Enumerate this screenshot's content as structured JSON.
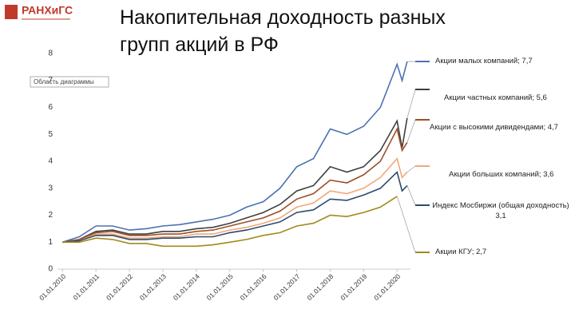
{
  "logo": "РАНХиГС",
  "chart_data": {
    "type": "line",
    "title_lines": [
      "Накопительная доходность разных",
      "групп акций в РФ"
    ],
    "chart_area_label": "Область диаграммы",
    "x": [
      2010,
      2010.5,
      2011,
      2011.5,
      2012,
      2012.5,
      2013,
      2013.5,
      2014,
      2014.5,
      2015,
      2015.5,
      2016,
      2016.5,
      2017,
      2017.5,
      2018,
      2018.5,
      2019,
      2019.5,
      2020,
      2020.15,
      2020.3
    ],
    "xlim": [
      2009.85,
      2020.4
    ],
    "xticks": [
      {
        "value": 2010,
        "label": "01.01.2010"
      },
      {
        "value": 2011,
        "label": "01.01.2011"
      },
      {
        "value": 2012,
        "label": "01.01.2012"
      },
      {
        "value": 2013,
        "label": "01.01.2013"
      },
      {
        "value": 2014,
        "label": "01.01.2014"
      },
      {
        "value": 2015,
        "label": "01.01.2015"
      },
      {
        "value": 2016,
        "label": "01.01.2016"
      },
      {
        "value": 2017,
        "label": "01.01.2017"
      },
      {
        "value": 2018,
        "label": "01.01.2018"
      },
      {
        "value": 2019,
        "label": "01.01.2019"
      },
      {
        "value": 2020,
        "label": "01.01.2020"
      }
    ],
    "ylim": [
      0,
      8
    ],
    "yticks": [
      0,
      1,
      2,
      3,
      4,
      5,
      6,
      7,
      8
    ],
    "grid": false,
    "series": [
      {
        "name": "Акции малых компаний; 7,7",
        "color": "#4a72b0",
        "values": [
          1.0,
          1.2,
          1.6,
          1.6,
          1.45,
          1.5,
          1.6,
          1.65,
          1.75,
          1.85,
          2.0,
          2.3,
          2.5,
          3.0,
          3.8,
          4.1,
          5.2,
          5.0,
          5.3,
          6.0,
          7.6,
          7.0,
          7.7
        ]
      },
      {
        "name": "Акции частных компаний; 5,6",
        "color": "#404040",
        "values": [
          1.0,
          1.1,
          1.4,
          1.45,
          1.3,
          1.3,
          1.4,
          1.4,
          1.5,
          1.55,
          1.7,
          1.9,
          2.1,
          2.4,
          2.9,
          3.1,
          3.8,
          3.6,
          3.8,
          4.4,
          5.5,
          4.5,
          5.6
        ]
      },
      {
        "name": "Акции с высокими дивидендами; 4,7",
        "color": "#9c4f27",
        "values": [
          1.0,
          1.1,
          1.35,
          1.4,
          1.25,
          1.25,
          1.3,
          1.3,
          1.4,
          1.45,
          1.6,
          1.75,
          1.9,
          2.15,
          2.6,
          2.8,
          3.3,
          3.2,
          3.5,
          4.0,
          5.2,
          4.4,
          4.7
        ]
      },
      {
        "name": "Акции больших компаний; 3,6",
        "color": "#f0a878",
        "values": [
          1.0,
          1.05,
          1.3,
          1.3,
          1.15,
          1.15,
          1.2,
          1.2,
          1.3,
          1.3,
          1.45,
          1.55,
          1.7,
          1.9,
          2.3,
          2.45,
          2.9,
          2.8,
          3.0,
          3.4,
          4.1,
          3.4,
          3.6
        ]
      },
      {
        "name": "Индекс Мосбиржи (общая доходность) 3,1",
        "color": "#2e4a6e",
        "values": [
          1.0,
          1.05,
          1.25,
          1.25,
          1.1,
          1.1,
          1.15,
          1.15,
          1.2,
          1.2,
          1.35,
          1.45,
          1.6,
          1.75,
          2.1,
          2.2,
          2.6,
          2.55,
          2.75,
          3.0,
          3.6,
          2.9,
          3.1
        ]
      },
      {
        "name": "Акции КГУ; 2,7",
        "color": "#a08a1c",
        "values": [
          1.0,
          1.0,
          1.15,
          1.1,
          0.95,
          0.95,
          0.85,
          0.85,
          0.85,
          0.9,
          1.0,
          1.1,
          1.25,
          1.35,
          1.6,
          1.7,
          2.0,
          1.95,
          2.1,
          2.3,
          2.7,
          null,
          null
        ]
      }
    ]
  }
}
